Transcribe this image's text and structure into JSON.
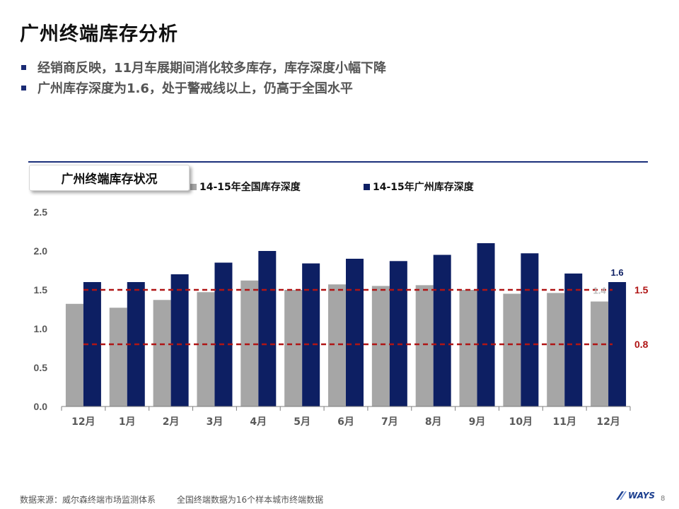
{
  "header": {
    "title": "广州终端库存分析",
    "bullets": [
      "经销商反映，11月车展期间消化较多库存，库存深度小幅下降",
      "广州库存深度为1.6，处于警戒线以上，仍高于全国水平"
    ]
  },
  "chart_tag": "广州终端库存状况",
  "chart_data": {
    "type": "bar",
    "categories": [
      "12月",
      "1月",
      "2月",
      "3月",
      "4月",
      "5月",
      "6月",
      "7月",
      "8月",
      "9月",
      "10月",
      "11月",
      "12月"
    ],
    "series": [
      {
        "name": "14-15年全国库存深度",
        "color": "#a6a6a6",
        "values": [
          1.32,
          1.27,
          1.37,
          1.47,
          1.62,
          1.5,
          1.57,
          1.55,
          1.56,
          1.5,
          1.45,
          1.46,
          1.35
        ]
      },
      {
        "name": "14-15年广州库存深度",
        "color": "#0d1f63",
        "values": [
          1.6,
          1.6,
          1.7,
          1.85,
          2.0,
          1.84,
          1.9,
          1.87,
          1.95,
          2.1,
          1.97,
          1.71,
          1.6
        ]
      }
    ],
    "yticks": [
      "0.0",
      "0.5",
      "1.0",
      "1.5",
      "2.0",
      "2.5"
    ],
    "ylim": [
      0,
      2.5
    ],
    "reference_lines": [
      {
        "value": 1.5,
        "label": "1.5",
        "color": "#b01515"
      },
      {
        "value": 0.8,
        "label": "0.8",
        "color": "#b01515"
      }
    ],
    "data_labels": [
      {
        "series": 1,
        "index": 12,
        "text": "1.6",
        "color": "#0d1f63"
      },
      {
        "series": 0,
        "index": 12,
        "text": "1.4",
        "color": "#bbbbbb"
      }
    ],
    "grid": false,
    "legend_position": "top"
  },
  "footer": {
    "source": "数据来源：威尔森终端市场监测体系",
    "note": "全国终端数据为16个样本城市终端数据"
  },
  "logo_text": "WAYS",
  "page_number": "8"
}
